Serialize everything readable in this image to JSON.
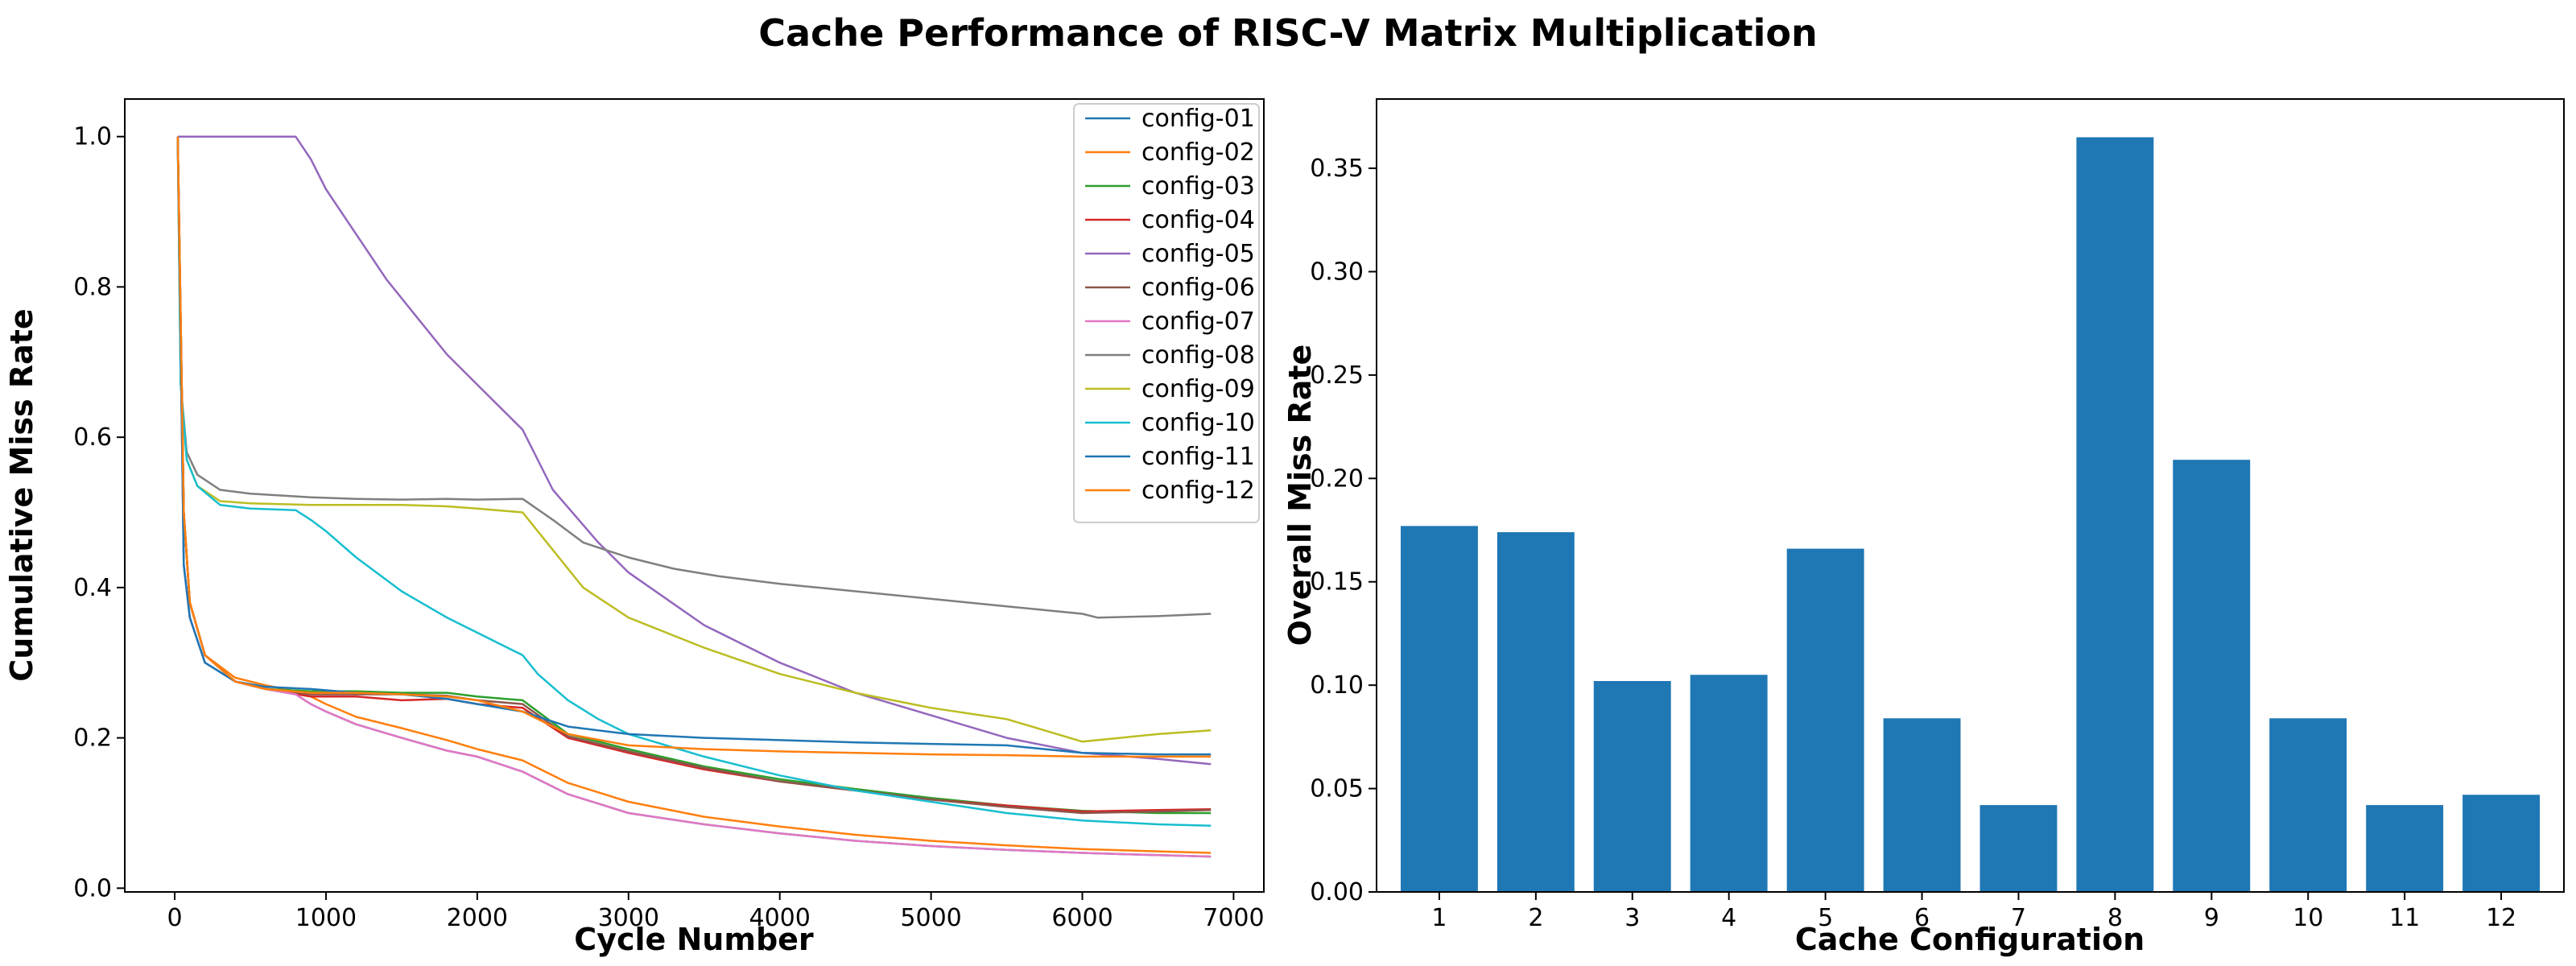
{
  "title": "Cache Performance of RISC-V Matrix Multiplication",
  "colors": {
    "config-01": "#1f77b4",
    "config-02": "#ff7f0e",
    "config-03": "#2ca02c",
    "config-04": "#d62728",
    "config-05": "#9467bd",
    "config-06": "#8c564b",
    "config-07": "#e377c2",
    "config-08": "#7f7f7f",
    "config-09": "#bcbd22",
    "config-10": "#17becf",
    "config-11": "#1f77b4",
    "config-12": "#ff7f0e",
    "bar": "#1f77b4"
  },
  "chart_data": [
    {
      "type": "line",
      "xlabel": "Cycle Number",
      "ylabel": "Cumulative Miss Rate",
      "xlim": [
        -330,
        7200
      ],
      "ylim": [
        -0.005,
        1.05
      ],
      "xticks": [
        "0",
        "1000",
        "2000",
        "3000",
        "4000",
        "5000",
        "6000",
        "7000"
      ],
      "yticks": [
        "0.0",
        "0.2",
        "0.4",
        "0.6",
        "0.8",
        "1.0"
      ],
      "legend": "top-right",
      "grid": false,
      "series": [
        {
          "name": "config-01",
          "x": [
            20,
            60,
            100,
            200,
            400,
            600,
            800,
            900,
            1000,
            1200,
            1500,
            1800,
            2000,
            2300,
            2600,
            3000,
            3500,
            4000,
            4500,
            5000,
            5500,
            6000,
            6500,
            6850
          ],
          "y": [
            1.0,
            0.43,
            0.36,
            0.3,
            0.275,
            0.265,
            0.258,
            0.245,
            0.235,
            0.218,
            0.2,
            0.183,
            0.175,
            0.155,
            0.125,
            0.1,
            0.085,
            0.073,
            0.063,
            0.056,
            0.051,
            0.047,
            0.044,
            0.042
          ]
        },
        {
          "name": "config-02",
          "x": [
            20,
            60,
            100,
            200,
            400,
            600,
            800,
            900,
            1000,
            1200,
            1500,
            1800,
            2000,
            2300,
            2600,
            3000,
            3500,
            4000,
            4500,
            5000,
            5500,
            6000,
            6500,
            6850
          ],
          "y": [
            1.0,
            0.5,
            0.38,
            0.31,
            0.28,
            0.27,
            0.262,
            0.255,
            0.245,
            0.228,
            0.213,
            0.197,
            0.185,
            0.17,
            0.14,
            0.115,
            0.095,
            0.082,
            0.071,
            0.063,
            0.057,
            0.052,
            0.049,
            0.047
          ]
        },
        {
          "name": "config-03",
          "x": [
            20,
            60,
            100,
            200,
            400,
            600,
            900,
            1200,
            1500,
            1800,
            2000,
            2300,
            2600,
            3000,
            3500,
            4000,
            4500,
            5000,
            5500,
            6000,
            6500,
            6850
          ],
          "y": [
            1.0,
            0.5,
            0.38,
            0.31,
            0.275,
            0.265,
            0.262,
            0.262,
            0.26,
            0.26,
            0.255,
            0.25,
            0.205,
            0.185,
            0.162,
            0.145,
            0.132,
            0.12,
            0.11,
            0.103,
            0.1,
            0.1
          ]
        },
        {
          "name": "config-04",
          "x": [
            20,
            60,
            100,
            200,
            400,
            600,
            900,
            1200,
            1500,
            1800,
            2000,
            2300,
            2600,
            3000,
            3500,
            4000,
            4500,
            5000,
            5500,
            6000,
            6500,
            6850
          ],
          "y": [
            1.0,
            0.5,
            0.38,
            0.31,
            0.275,
            0.265,
            0.255,
            0.255,
            0.25,
            0.252,
            0.245,
            0.24,
            0.2,
            0.18,
            0.158,
            0.142,
            0.13,
            0.118,
            0.11,
            0.102,
            0.104,
            0.105
          ]
        },
        {
          "name": "config-05",
          "x": [
            20,
            400,
            800,
            900,
            1000,
            1200,
            1400,
            1600,
            1800,
            2000,
            2200,
            2300,
            2500,
            2800,
            3000,
            3500,
            4000,
            4500,
            5000,
            5500,
            6000,
            6500,
            6850
          ],
          "y": [
            1.0,
            1.0,
            1.0,
            0.97,
            0.93,
            0.87,
            0.81,
            0.76,
            0.71,
            0.67,
            0.63,
            0.61,
            0.53,
            0.46,
            0.42,
            0.35,
            0.3,
            0.26,
            0.23,
            0.2,
            0.18,
            0.172,
            0.165
          ]
        },
        {
          "name": "config-06",
          "x": [
            20,
            60,
            100,
            200,
            400,
            600,
            900,
            1200,
            1500,
            1800,
            2000,
            2300,
            2600,
            3000,
            3500,
            4000,
            4500,
            5000,
            5500,
            6000,
            6500,
            6850
          ],
          "y": [
            1.0,
            0.5,
            0.38,
            0.31,
            0.275,
            0.265,
            0.258,
            0.258,
            0.258,
            0.256,
            0.25,
            0.245,
            0.202,
            0.182,
            0.16,
            0.142,
            0.13,
            0.118,
            0.108,
            0.1,
            0.102,
            0.104
          ]
        },
        {
          "name": "config-07",
          "x": [
            20,
            60,
            100,
            200,
            400,
            600,
            800,
            900,
            1000,
            1200,
            1500,
            1800,
            2000,
            2300,
            2600,
            3000,
            3500,
            4000,
            4500,
            5000,
            5500,
            6000,
            6500,
            6850
          ],
          "y": [
            1.0,
            0.43,
            0.36,
            0.3,
            0.275,
            0.265,
            0.258,
            0.245,
            0.235,
            0.218,
            0.2,
            0.183,
            0.175,
            0.155,
            0.125,
            0.1,
            0.085,
            0.073,
            0.063,
            0.056,
            0.051,
            0.047,
            0.044,
            0.042
          ]
        },
        {
          "name": "config-08",
          "x": [
            20,
            40,
            80,
            150,
            300,
            500,
            900,
            1200,
            1500,
            1800,
            2000,
            2300,
            2500,
            2700,
            3000,
            3300,
            3600,
            4000,
            4500,
            5000,
            5500,
            6000,
            6100,
            6500,
            6850
          ],
          "y": [
            1.0,
            0.67,
            0.58,
            0.55,
            0.53,
            0.525,
            0.52,
            0.518,
            0.517,
            0.518,
            0.517,
            0.518,
            0.49,
            0.46,
            0.44,
            0.425,
            0.415,
            0.405,
            0.395,
            0.385,
            0.375,
            0.365,
            0.36,
            0.362,
            0.365
          ]
        },
        {
          "name": "config-09",
          "x": [
            20,
            40,
            80,
            150,
            300,
            500,
            900,
            1200,
            1500,
            1800,
            2000,
            2300,
            2500,
            2700,
            3000,
            3500,
            4000,
            4500,
            5000,
            5500,
            6000,
            6500,
            6850
          ],
          "y": [
            1.0,
            0.67,
            0.57,
            0.535,
            0.515,
            0.512,
            0.51,
            0.51,
            0.51,
            0.508,
            0.505,
            0.5,
            0.45,
            0.4,
            0.36,
            0.32,
            0.285,
            0.26,
            0.24,
            0.225,
            0.195,
            0.205,
            0.21
          ]
        },
        {
          "name": "config-10",
          "x": [
            20,
            40,
            80,
            150,
            300,
            500,
            800,
            900,
            1000,
            1200,
            1500,
            1800,
            2000,
            2300,
            2400,
            2600,
            2800,
            3000,
            3500,
            4000,
            4500,
            5000,
            5500,
            6000,
            6500,
            6850
          ],
          "y": [
            1.0,
            0.67,
            0.57,
            0.535,
            0.51,
            0.505,
            0.503,
            0.49,
            0.475,
            0.44,
            0.395,
            0.36,
            0.34,
            0.31,
            0.285,
            0.25,
            0.225,
            0.205,
            0.175,
            0.15,
            0.13,
            0.115,
            0.1,
            0.09,
            0.085,
            0.083
          ]
        },
        {
          "name": "config-11",
          "x": [
            20,
            60,
            100,
            200,
            400,
            600,
            900,
            1200,
            1500,
            1800,
            2000,
            2300,
            2600,
            3000,
            3500,
            4000,
            4500,
            5000,
            5500,
            6000,
            6500,
            6850
          ],
          "y": [
            1.0,
            0.43,
            0.36,
            0.3,
            0.275,
            0.268,
            0.265,
            0.26,
            0.258,
            0.252,
            0.245,
            0.235,
            0.215,
            0.205,
            0.2,
            0.197,
            0.194,
            0.192,
            0.19,
            0.18,
            0.178,
            0.178
          ]
        },
        {
          "name": "config-12",
          "x": [
            20,
            60,
            100,
            200,
            400,
            600,
            900,
            1200,
            1500,
            1800,
            2000,
            2300,
            2600,
            3000,
            3500,
            4000,
            4500,
            5000,
            5500,
            6000,
            6500,
            6850
          ],
          "y": [
            1.0,
            0.5,
            0.38,
            0.31,
            0.275,
            0.265,
            0.26,
            0.26,
            0.258,
            0.255,
            0.25,
            0.235,
            0.205,
            0.19,
            0.185,
            0.182,
            0.18,
            0.178,
            0.177,
            0.175,
            0.175,
            0.175
          ]
        }
      ]
    },
    {
      "type": "bar",
      "xlabel": "Cache Configuration",
      "ylabel": "Overall Miss Rate",
      "categories": [
        "1",
        "2",
        "3",
        "4",
        "5",
        "6",
        "7",
        "8",
        "9",
        "10",
        "11",
        "12"
      ],
      "values": [
        0.177,
        0.174,
        0.102,
        0.105,
        0.166,
        0.084,
        0.042,
        0.365,
        0.209,
        0.084,
        0.042,
        0.047
      ],
      "ylim": [
        0,
        0.3835
      ],
      "yticks": [
        "0.00",
        "0.05",
        "0.10",
        "0.15",
        "0.20",
        "0.25",
        "0.30",
        "0.35"
      ],
      "grid": false
    }
  ]
}
